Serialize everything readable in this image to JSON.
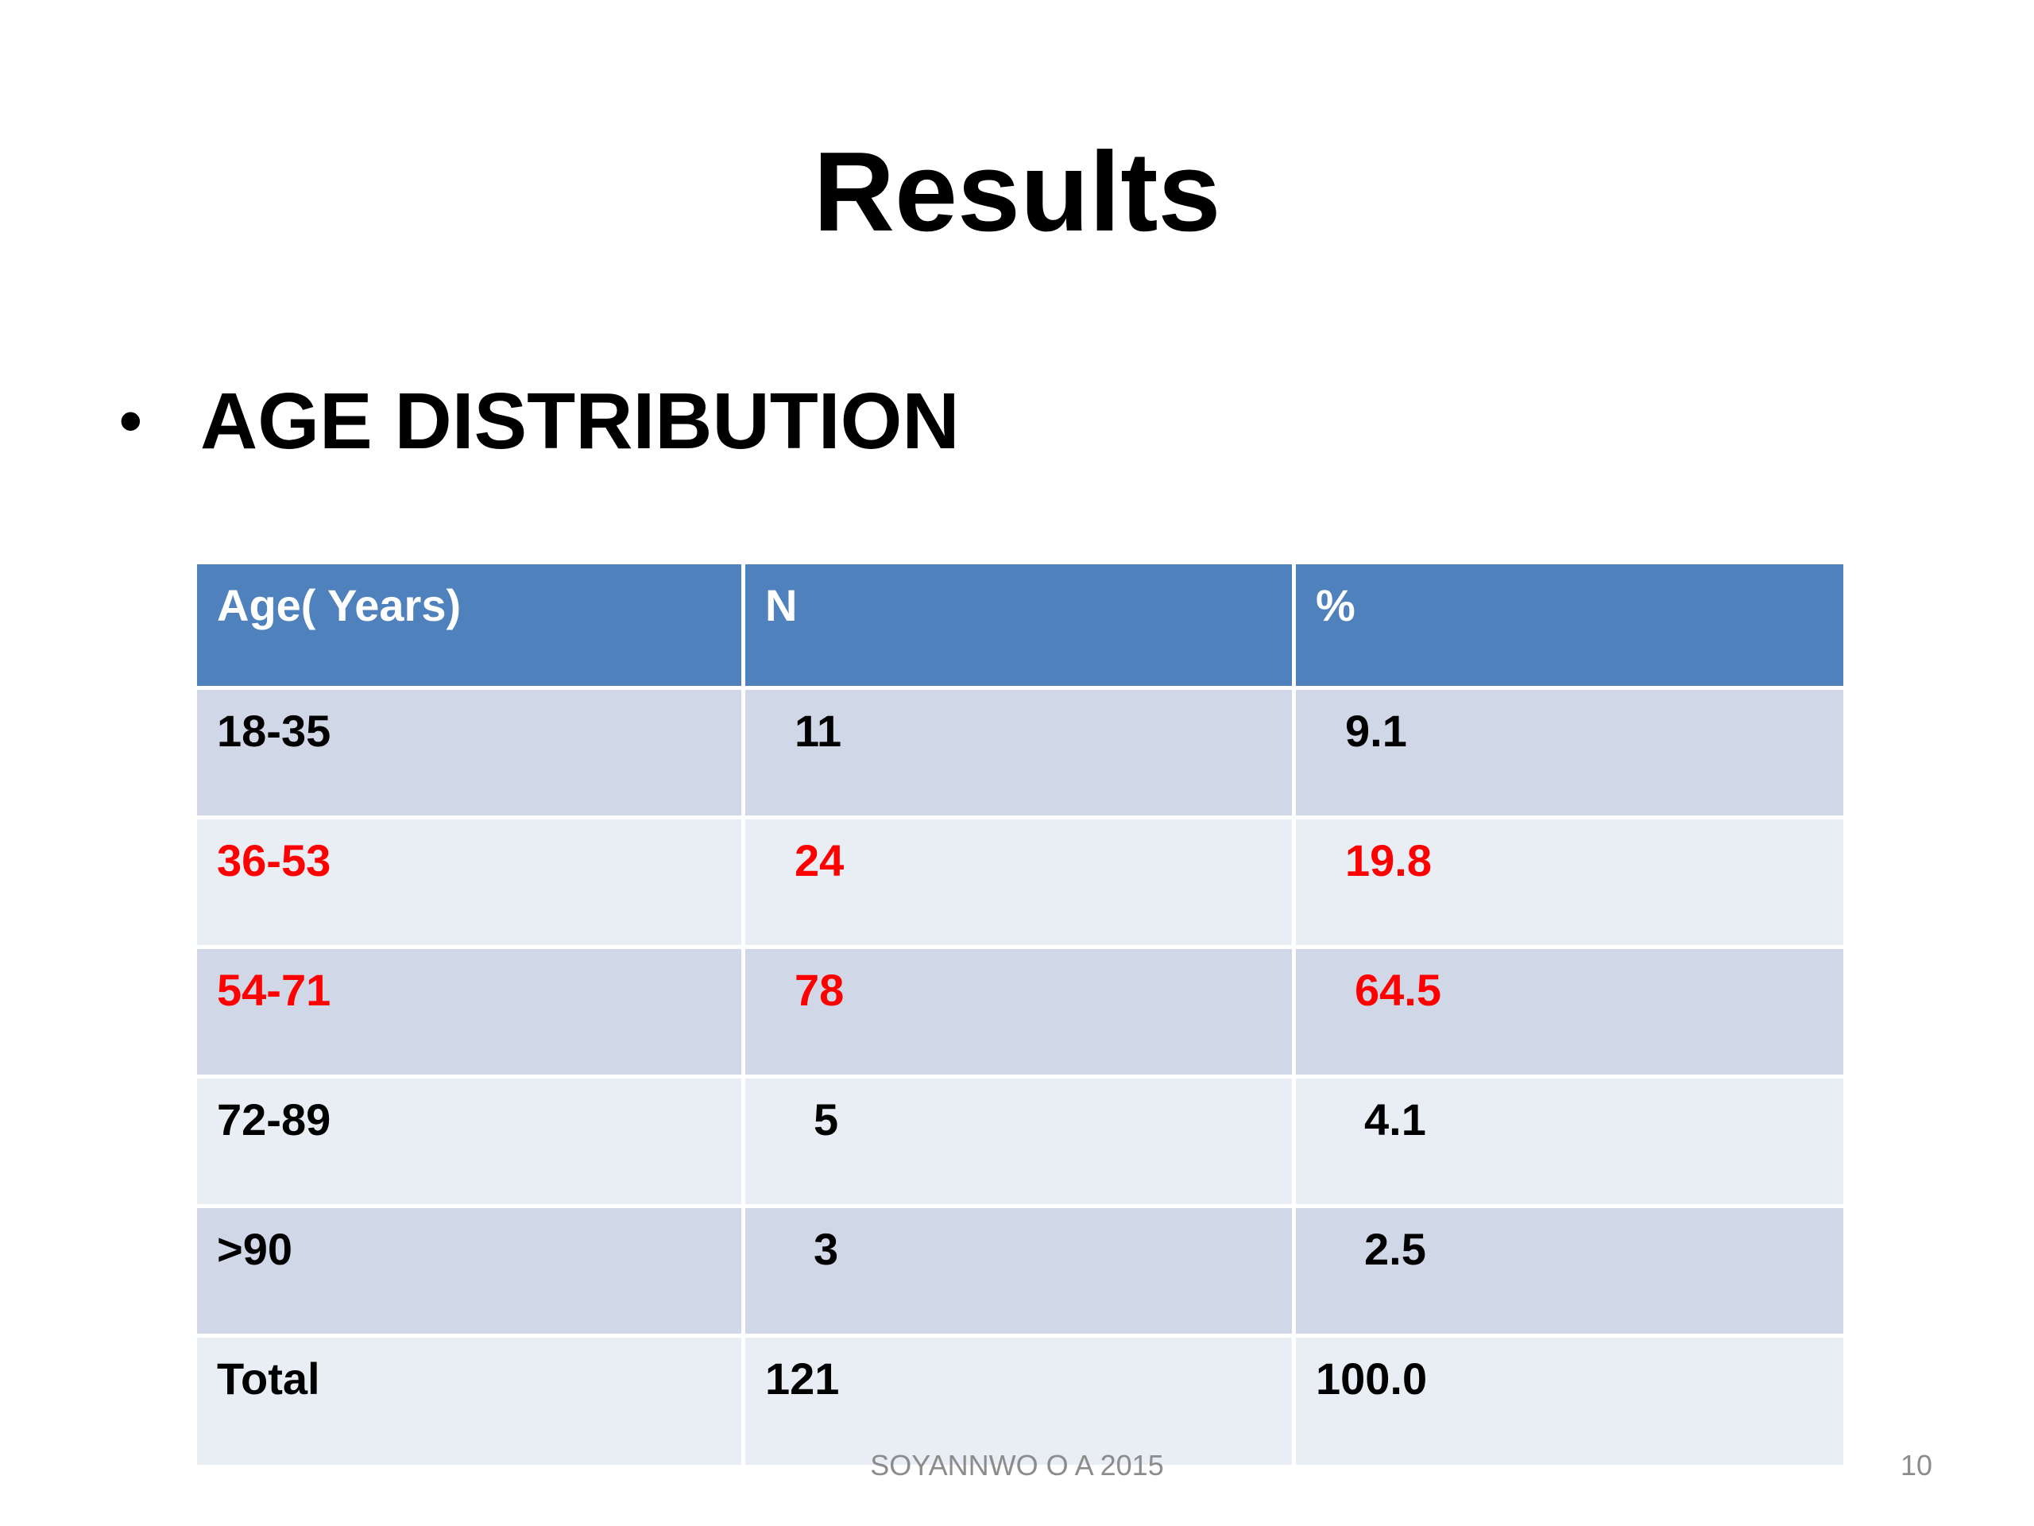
{
  "slide": {
    "title": "Results",
    "bullet": "AGE DISTRIBUTION",
    "table": {
      "headers": [
        "Age( Years)",
        "N",
        "%"
      ],
      "rows": [
        {
          "age": "18-35",
          "n": "11",
          "pct": "9.1",
          "highlight": false
        },
        {
          "age": "36-53",
          "n": "24",
          "pct": "19.8",
          "highlight": true
        },
        {
          "age": "54-71",
          "n": "78",
          "pct": "64.5",
          "highlight": true
        },
        {
          "age": "72-89",
          "n": "5",
          "pct": "4.1",
          "highlight": false
        },
        {
          "age": ">90",
          "n": "3",
          "pct": "2.5",
          "highlight": false
        }
      ],
      "total": {
        "label": "Total",
        "n": "121",
        "pct": "100.0"
      }
    },
    "footer": "SOYANNWO O A 2015",
    "page_number": "10"
  },
  "colors": {
    "header_bg": "#4f81bd",
    "row_dark": "#d0d8e8",
    "row_light": "#e9edf4",
    "highlight_text": "#ff0000"
  }
}
